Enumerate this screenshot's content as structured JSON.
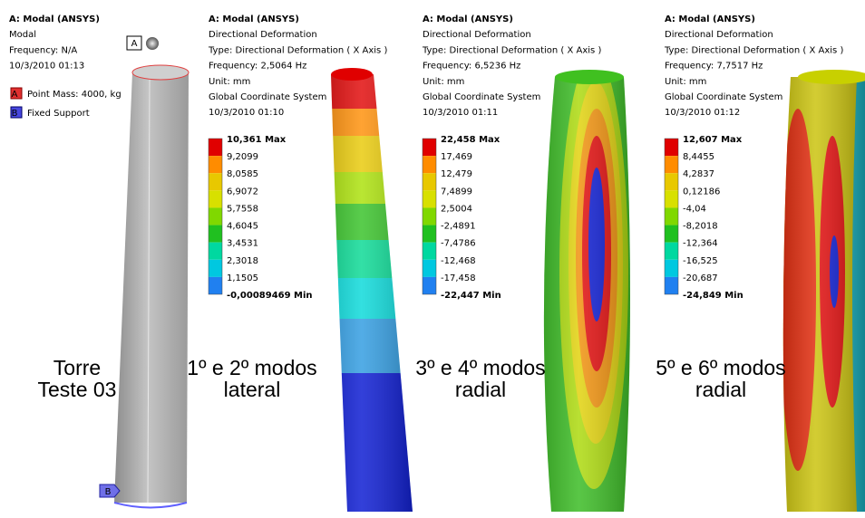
{
  "panels": [
    {
      "header": [
        "A: Modal (ANSYS)",
        "Modal",
        "Frequency: N/A",
        "10/3/2010 01:13"
      ],
      "tags": [
        {
          "letter": "A",
          "label": "Point Mass: 4000, kg"
        },
        {
          "letter": "B",
          "label": "Fixed Support"
        }
      ],
      "caption": [
        "Torre",
        "Teste 03"
      ]
    },
    {
      "header": [
        "A: Modal (ANSYS)",
        "Directional Deformation",
        "Type: Directional Deformation ( X Axis )",
        "Frequency: 2,5064 Hz",
        "Unit: mm",
        "Global Coordinate System",
        "10/3/2010 01:10"
      ],
      "legend": [
        "10,361 Max",
        "9,2099",
        "8,0585",
        "6,9072",
        "5,7558",
        "4,6045",
        "3,4531",
        "2,3018",
        "1,1505",
        "-0,00089469 Min"
      ],
      "caption": [
        "1º e 2º modos",
        "lateral"
      ]
    },
    {
      "header": [
        "A: Modal (ANSYS)",
        "Directional Deformation",
        "Type: Directional Deformation ( X Axis )",
        "Frequency: 6,5236 Hz",
        "Unit: mm",
        "Global Coordinate System",
        "10/3/2010 01:11"
      ],
      "legend": [
        "22,458 Max",
        "17,469",
        "12,479",
        "7,4899",
        "2,5004",
        "-2,4891",
        "-7,4786",
        "-12,468",
        "-17,458",
        "-22,447 Min"
      ],
      "caption": [
        "3º e 4º modos",
        "radial"
      ]
    },
    {
      "header": [
        "A: Modal (ANSYS)",
        "Directional Deformation",
        "Type: Directional Deformation ( X Axis )",
        "Frequency: 7,7517 Hz",
        "Unit: mm",
        "Global Coordinate System",
        "10/3/2010 01:12"
      ],
      "legend": [
        "12,607 Max",
        "8,4455",
        "4,2837",
        "0,12186",
        "-4,04",
        "-8,2018",
        "-12,364",
        "-16,525",
        "-20,687",
        "-24,849 Min"
      ],
      "caption": [
        "5º e 6º modos",
        "radial"
      ]
    }
  ]
}
